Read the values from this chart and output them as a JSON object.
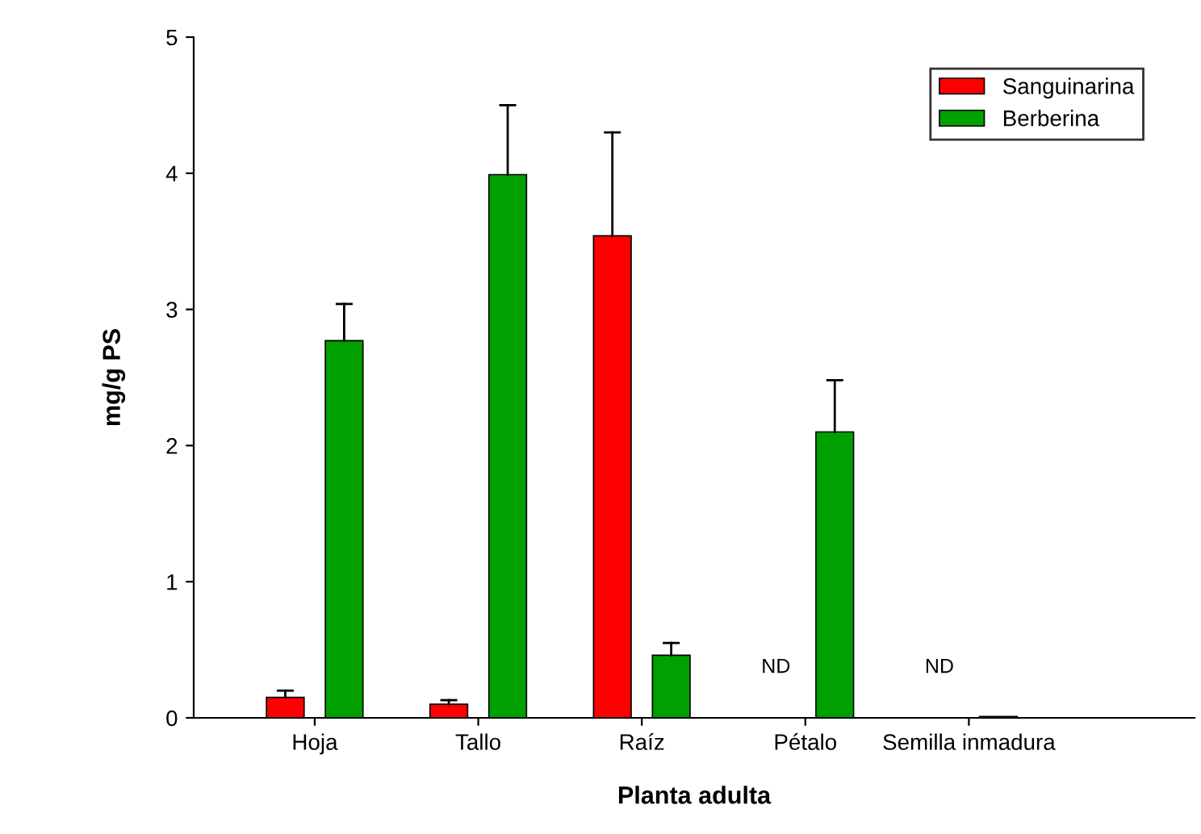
{
  "chart_data": {
    "type": "bar",
    "xlabel": "Planta adulta",
    "ylabel": "mg/g PS",
    "categories": [
      "Hoja",
      "Tallo",
      "Raíz",
      "Pétalo",
      "Semilla inmadura"
    ],
    "series": [
      {
        "name": "Sanguinarina",
        "color": "#ff0000",
        "values": [
          0.15,
          0.1,
          3.54,
          null,
          null
        ],
        "errors": [
          [
            0.15,
            0.2
          ],
          [
            0.1,
            0.13
          ],
          [
            3.54,
            4.3
          ],
          null,
          null
        ]
      },
      {
        "name": "Berberina",
        "color": "#00a000",
        "values": [
          2.77,
          3.99,
          0.46,
          2.1,
          0.01
        ],
        "errors": [
          [
            2.77,
            3.04
          ],
          [
            3.99,
            4.5
          ],
          [
            0.46,
            0.55
          ],
          [
            2.1,
            2.48
          ],
          null
        ]
      }
    ],
    "annotations": [
      "ND",
      "ND"
    ],
    "ylim": [
      0,
      5
    ],
    "yticks": [
      0,
      1,
      2,
      3,
      4,
      5
    ],
    "grid": false,
    "legend": "top right"
  }
}
